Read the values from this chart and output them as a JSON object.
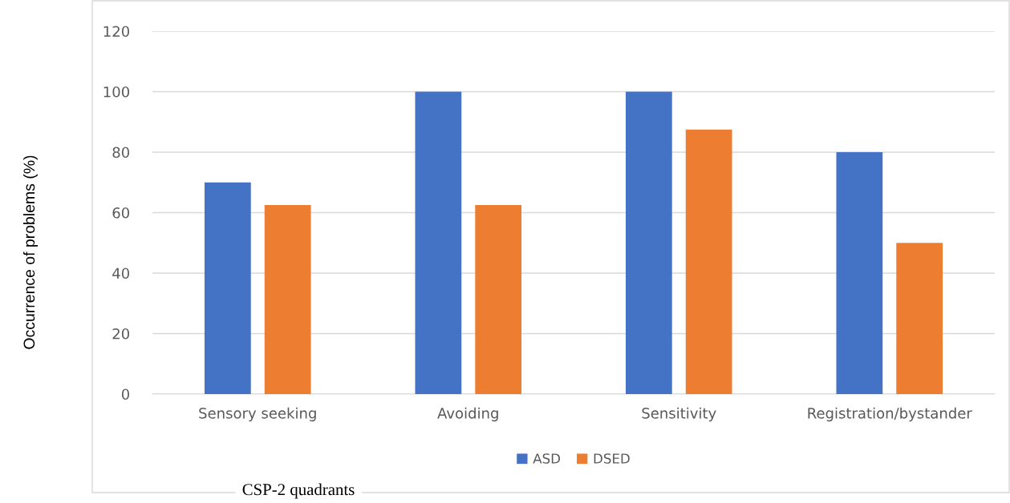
{
  "chart_data": {
    "type": "bar",
    "xlabel": "CSP-2 quadrants",
    "ylabel": "Occurrence of problems (%)",
    "categories": [
      "Sensory seeking",
      "Avoiding",
      "Sensitivity",
      "Registration/bystander"
    ],
    "series": [
      {
        "name": "ASD",
        "color": "#4472c4",
        "values": [
          70,
          100,
          100,
          80
        ]
      },
      {
        "name": "DSED",
        "color": "#ed7d31",
        "values": [
          62.5,
          62.5,
          87.5,
          50
        ]
      }
    ],
    "ylim": [
      0,
      120
    ],
    "yticks": [
      0,
      20,
      40,
      60,
      80,
      100,
      120
    ],
    "grid": "y",
    "legend": "bottom"
  }
}
